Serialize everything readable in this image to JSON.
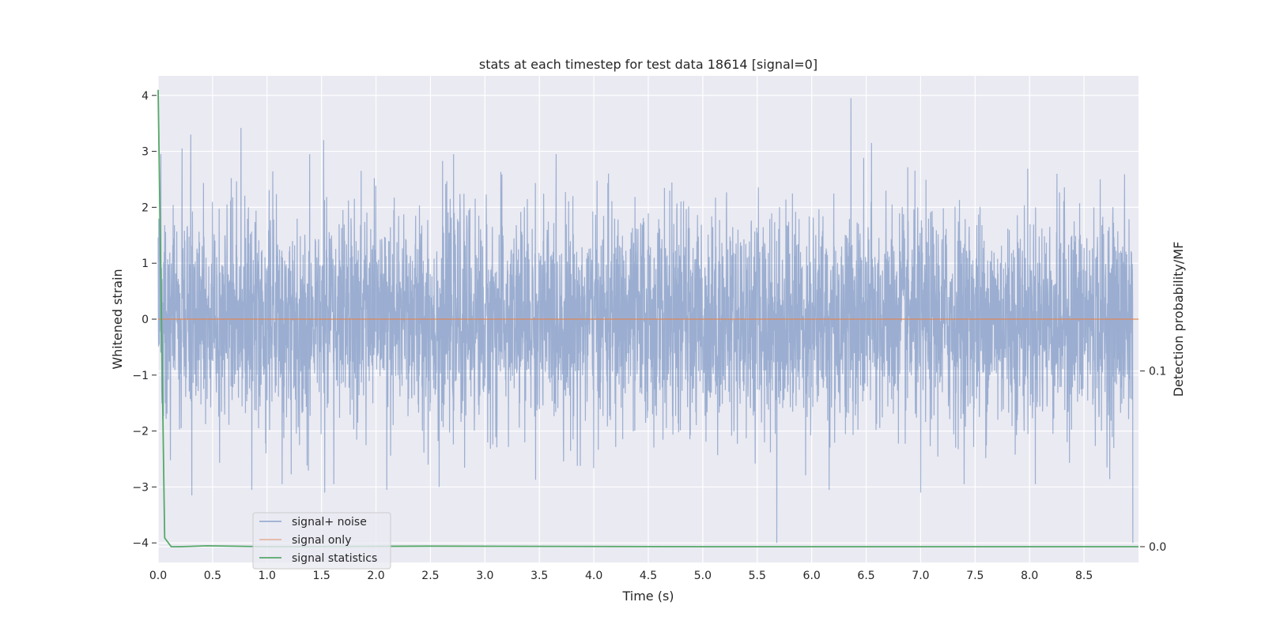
{
  "chart_data": {
    "type": "line",
    "title": "stats at each timestep for test data 18614 [signal=0]",
    "xlabel": "Time (s)",
    "ylabel": "Whitened strain",
    "ylabel_right": "Detection probability/MF",
    "xlim": [
      0.0,
      9.0
    ],
    "ylim": [
      -4.35,
      4.35
    ],
    "ylim_right": [
      -0.009,
      0.268
    ],
    "x_ticks": [
      0.0,
      0.5,
      1.0,
      1.5,
      2.0,
      2.5,
      3.0,
      3.5,
      4.0,
      4.5,
      5.0,
      5.5,
      6.0,
      6.5,
      7.0,
      7.5,
      8.0,
      8.5
    ],
    "x_tick_labels": [
      "0.0",
      "0.5",
      "1.0",
      "1.5",
      "2.0",
      "2.5",
      "3.0",
      "3.5",
      "4.0",
      "4.5",
      "5.0",
      "5.5",
      "6.0",
      "6.5",
      "7.0",
      "7.5",
      "8.0",
      "8.5"
    ],
    "y_ticks": [
      -4,
      -3,
      -2,
      -1,
      0,
      1,
      2,
      3,
      4
    ],
    "y_tick_labels": [
      "−4",
      "−3",
      "−2",
      "−1",
      "0",
      "1",
      "2",
      "3",
      "4"
    ],
    "y_right_ticks": [
      0.0,
      0.1
    ],
    "y_right_tick_labels": [
      "0.0",
      "0.1"
    ],
    "grid": true,
    "legend_position": "bottom-left",
    "series": [
      {
        "name": "signal+ noise",
        "color": "#4c72b0",
        "axis": "left",
        "kind": "noise",
        "n_samples": 4600,
        "std": 0.95,
        "peaks": [
          {
            "x": 0.22,
            "y": 3.05
          },
          {
            "x": 0.3,
            "y": 3.3
          },
          {
            "x": 0.31,
            "y": -3.15
          },
          {
            "x": 0.76,
            "y": 3.42
          },
          {
            "x": 0.86,
            "y": -3.05
          },
          {
            "x": 1.52,
            "y": 3.2
          },
          {
            "x": 1.53,
            "y": -3.1
          },
          {
            "x": 2.1,
            "y": -3.05
          },
          {
            "x": 2.58,
            "y": -3.0
          },
          {
            "x": 5.68,
            "y": -4.0
          },
          {
            "x": 6.36,
            "y": 3.95
          },
          {
            "x": 6.55,
            "y": 3.15
          },
          {
            "x": 6.16,
            "y": -3.05
          },
          {
            "x": 7.0,
            "y": -3.1
          },
          {
            "x": 8.95,
            "y": -4.0
          }
        ]
      },
      {
        "name": "signal only",
        "color": "#dd8452",
        "axis": "left",
        "x": [
          0.0,
          9.0
        ],
        "y": [
          0.0,
          0.0
        ]
      },
      {
        "name": "signal statistics",
        "color": "#55a868",
        "axis": "right",
        "x": [
          0.0,
          0.06,
          0.12,
          0.2,
          0.45,
          1.0,
          2.5,
          5.0,
          9.0
        ],
        "y": [
          0.26,
          0.005,
          0.0,
          0.0,
          0.0005,
          0.0,
          0.0003,
          0.0,
          0.0
        ]
      }
    ]
  }
}
